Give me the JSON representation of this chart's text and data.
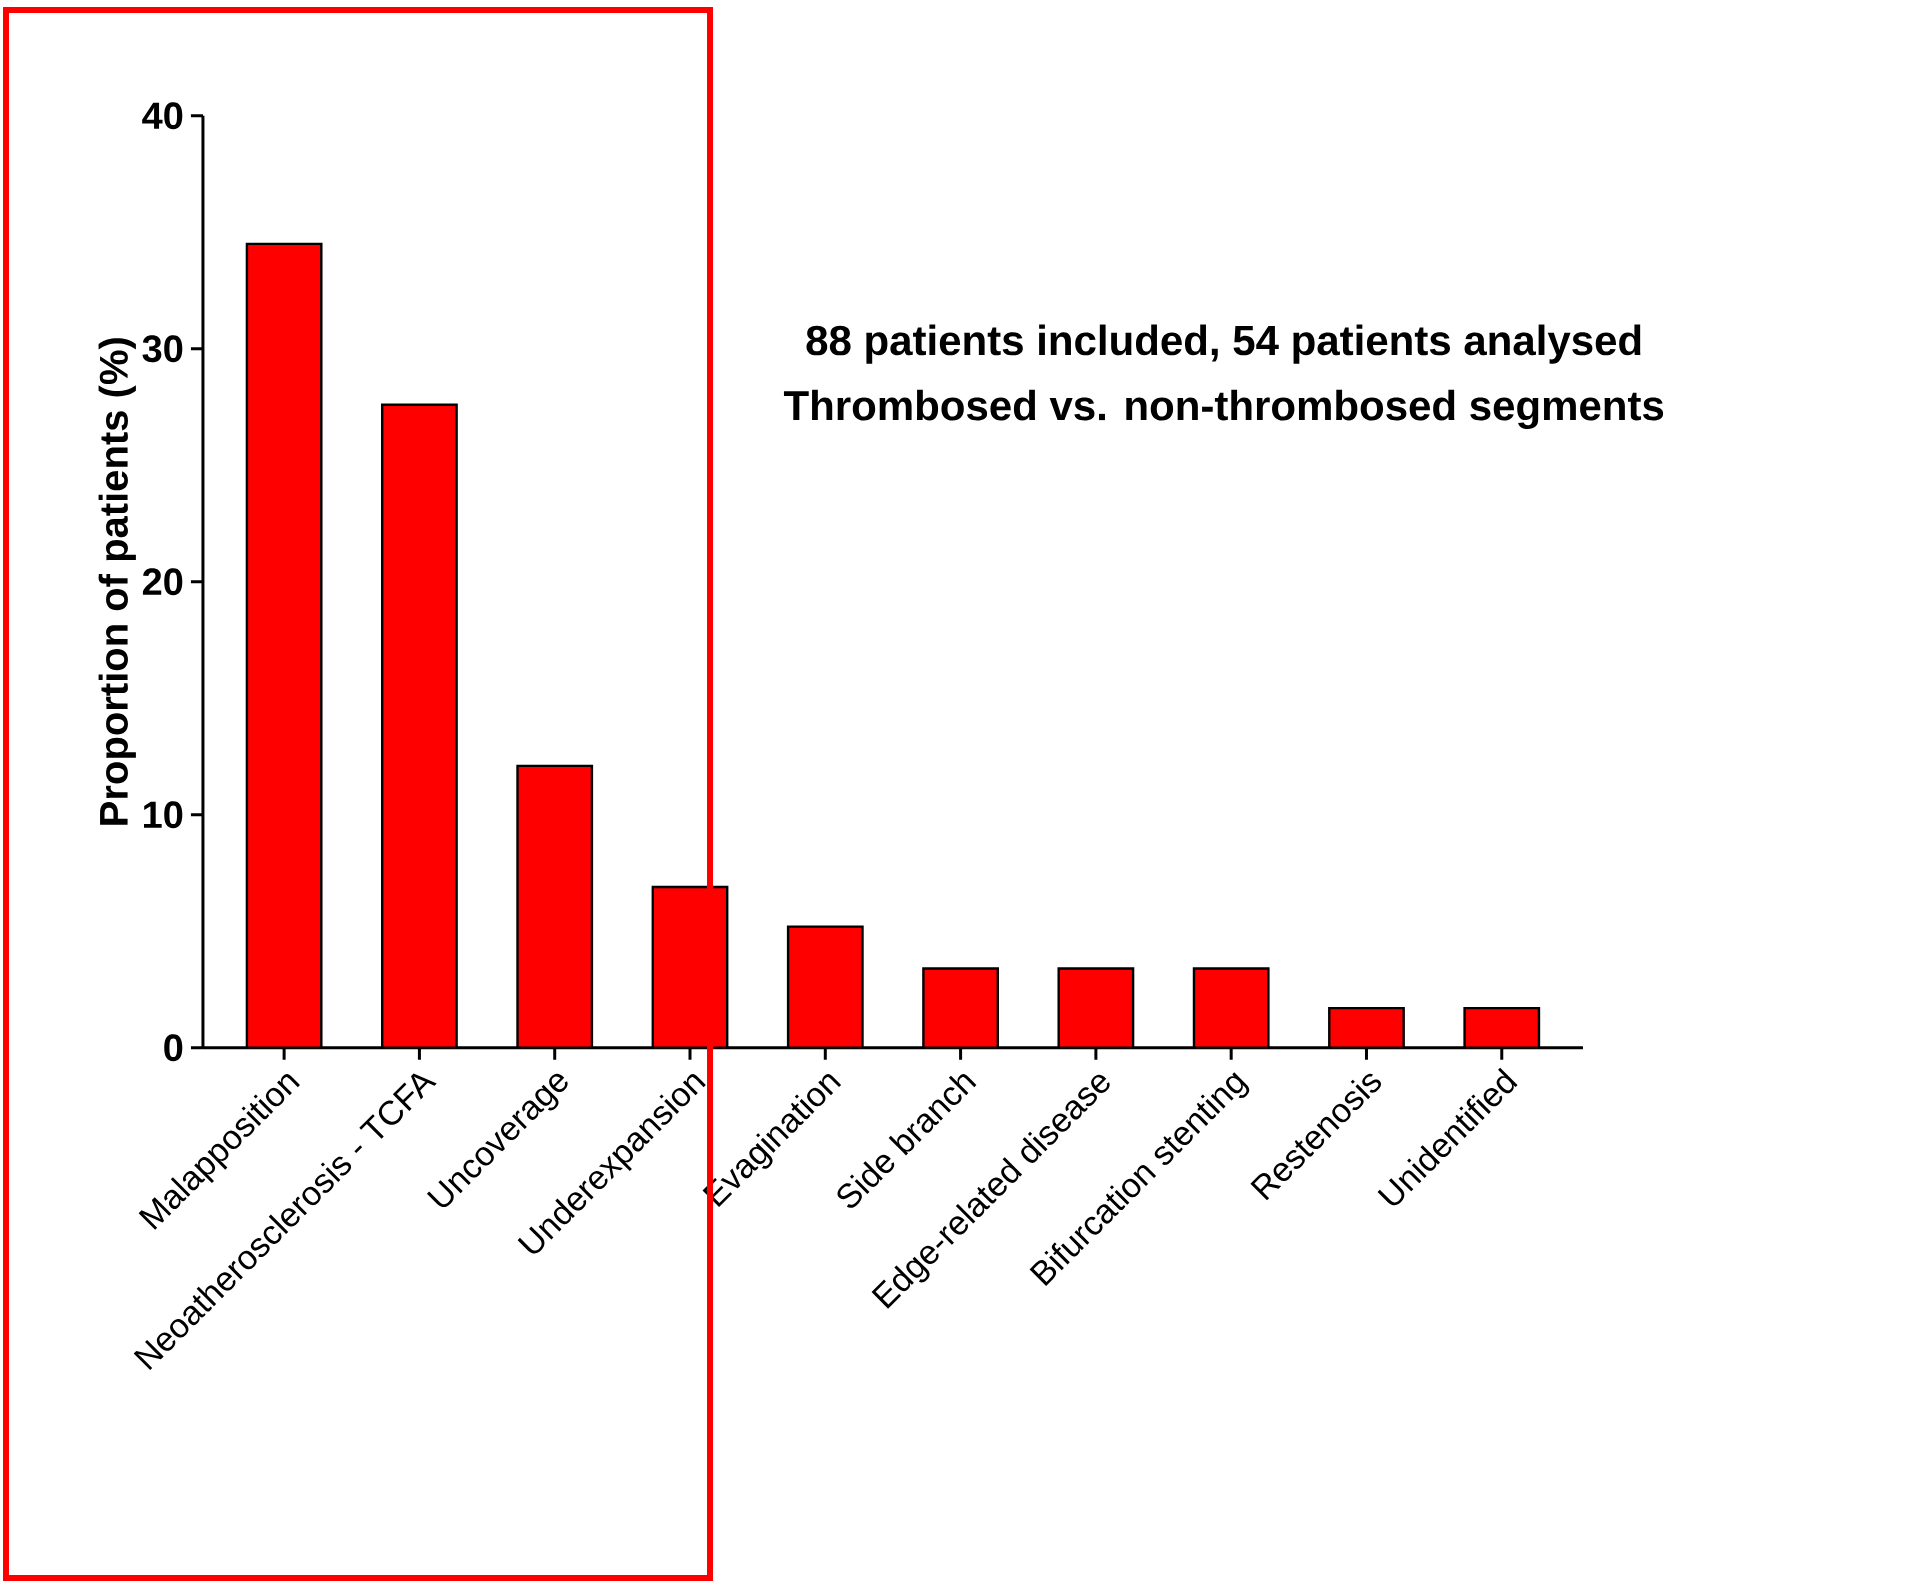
{
  "chart_data": {
    "type": "bar",
    "title": "88 patients included, 54 patients analysed",
    "subtitle": "Thrombosed vs. non-thrombosed segments",
    "ylabel": "Proportion of patients (%)",
    "categories": [
      "Malapposition",
      "Neoatherosclerosis - TCFA",
      "Uncoverage",
      "Underexpansion",
      "Evagination",
      "Side branch",
      "Edge-related disease",
      "Bifurcation stenting",
      "Restenosis",
      "Unidentified"
    ],
    "values": [
      34.5,
      27.6,
      12.1,
      6.9,
      5.2,
      3.4,
      3.4,
      3.4,
      1.7,
      1.7
    ],
    "color": "#ff0000",
    "ylim": [
      0,
      40
    ],
    "yticks": [
      0,
      10,
      20,
      30,
      40
    ]
  }
}
